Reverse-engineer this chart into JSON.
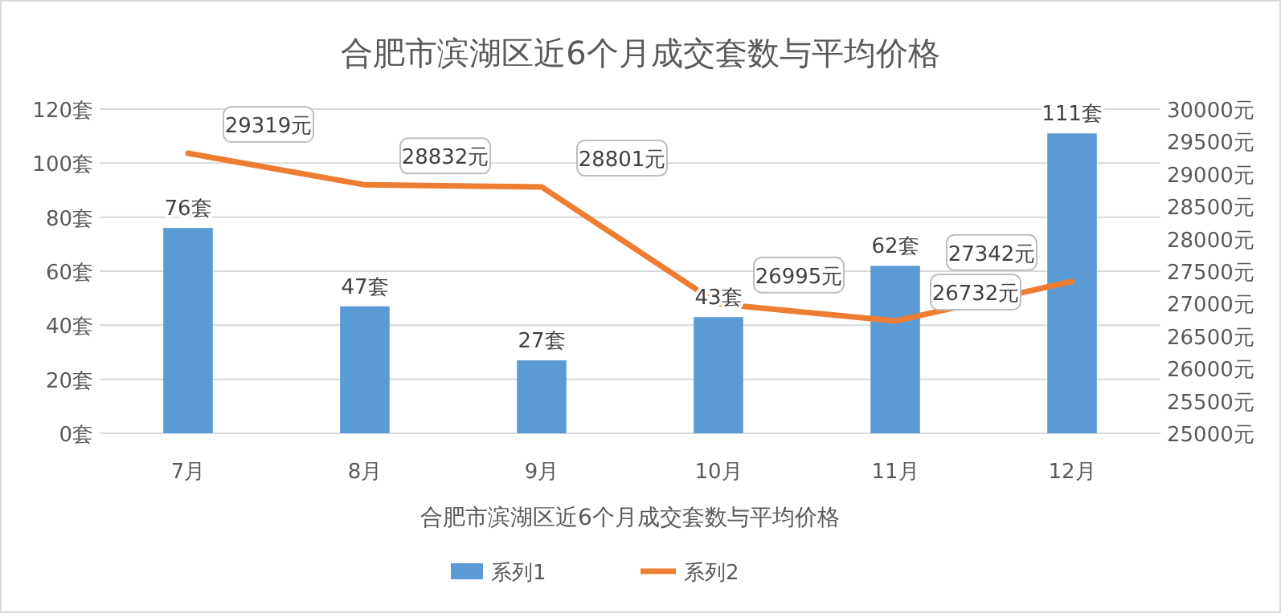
{
  "chart_data": {
    "type": "bar",
    "title": "合肥市滨湖区近6个月成交套数与平均价格",
    "xlabel": "合肥市滨湖区近6个月成交套数与平均价格",
    "categories": [
      "7月",
      "8月",
      "9月",
      "10月",
      "11月",
      "12月"
    ],
    "series": [
      {
        "name": "系列1",
        "color": "#5b9bd5",
        "values": [
          76,
          47,
          27,
          43,
          62,
          111
        ],
        "value_labels": [
          "76套",
          "47套",
          "27套",
          "43套",
          "62套",
          "111套"
        ]
      },
      {
        "name": "系列2",
        "type": "line",
        "axis": "y2",
        "color": "#ed7d31",
        "values": [
          29319,
          28832,
          28801,
          26995,
          26732,
          27342
        ],
        "value_labels": [
          "29319元",
          "28832元",
          "28801元",
          "26995元",
          "26732元",
          "27342元"
        ]
      }
    ],
    "ylim": [
      0,
      120
    ],
    "yticks": [
      {
        "value": 0,
        "label": "0套"
      },
      {
        "value": 20,
        "label": "20套"
      },
      {
        "value": 40,
        "label": "40套"
      },
      {
        "value": 60,
        "label": "60套"
      },
      {
        "value": 80,
        "label": "80套"
      },
      {
        "value": 100,
        "label": "100套"
      },
      {
        "value": 120,
        "label": "120套"
      }
    ],
    "y2lim": [
      25000,
      30000
    ],
    "y2ticks": [
      {
        "value": 25000,
        "label": "25000元"
      },
      {
        "value": 25500,
        "label": "25500元"
      },
      {
        "value": 26000,
        "label": "26000元"
      },
      {
        "value": 26500,
        "label": "26500元"
      },
      {
        "value": 27000,
        "label": "27000元"
      },
      {
        "value": 27500,
        "label": "27500元"
      },
      {
        "value": 28000,
        "label": "28000元"
      },
      {
        "value": 28500,
        "label": "28500元"
      },
      {
        "value": 29000,
        "label": "29000元"
      },
      {
        "value": 29500,
        "label": "29500元"
      },
      {
        "value": 30000,
        "label": "30000元"
      }
    ],
    "grid": "y",
    "legend": "bottom"
  }
}
